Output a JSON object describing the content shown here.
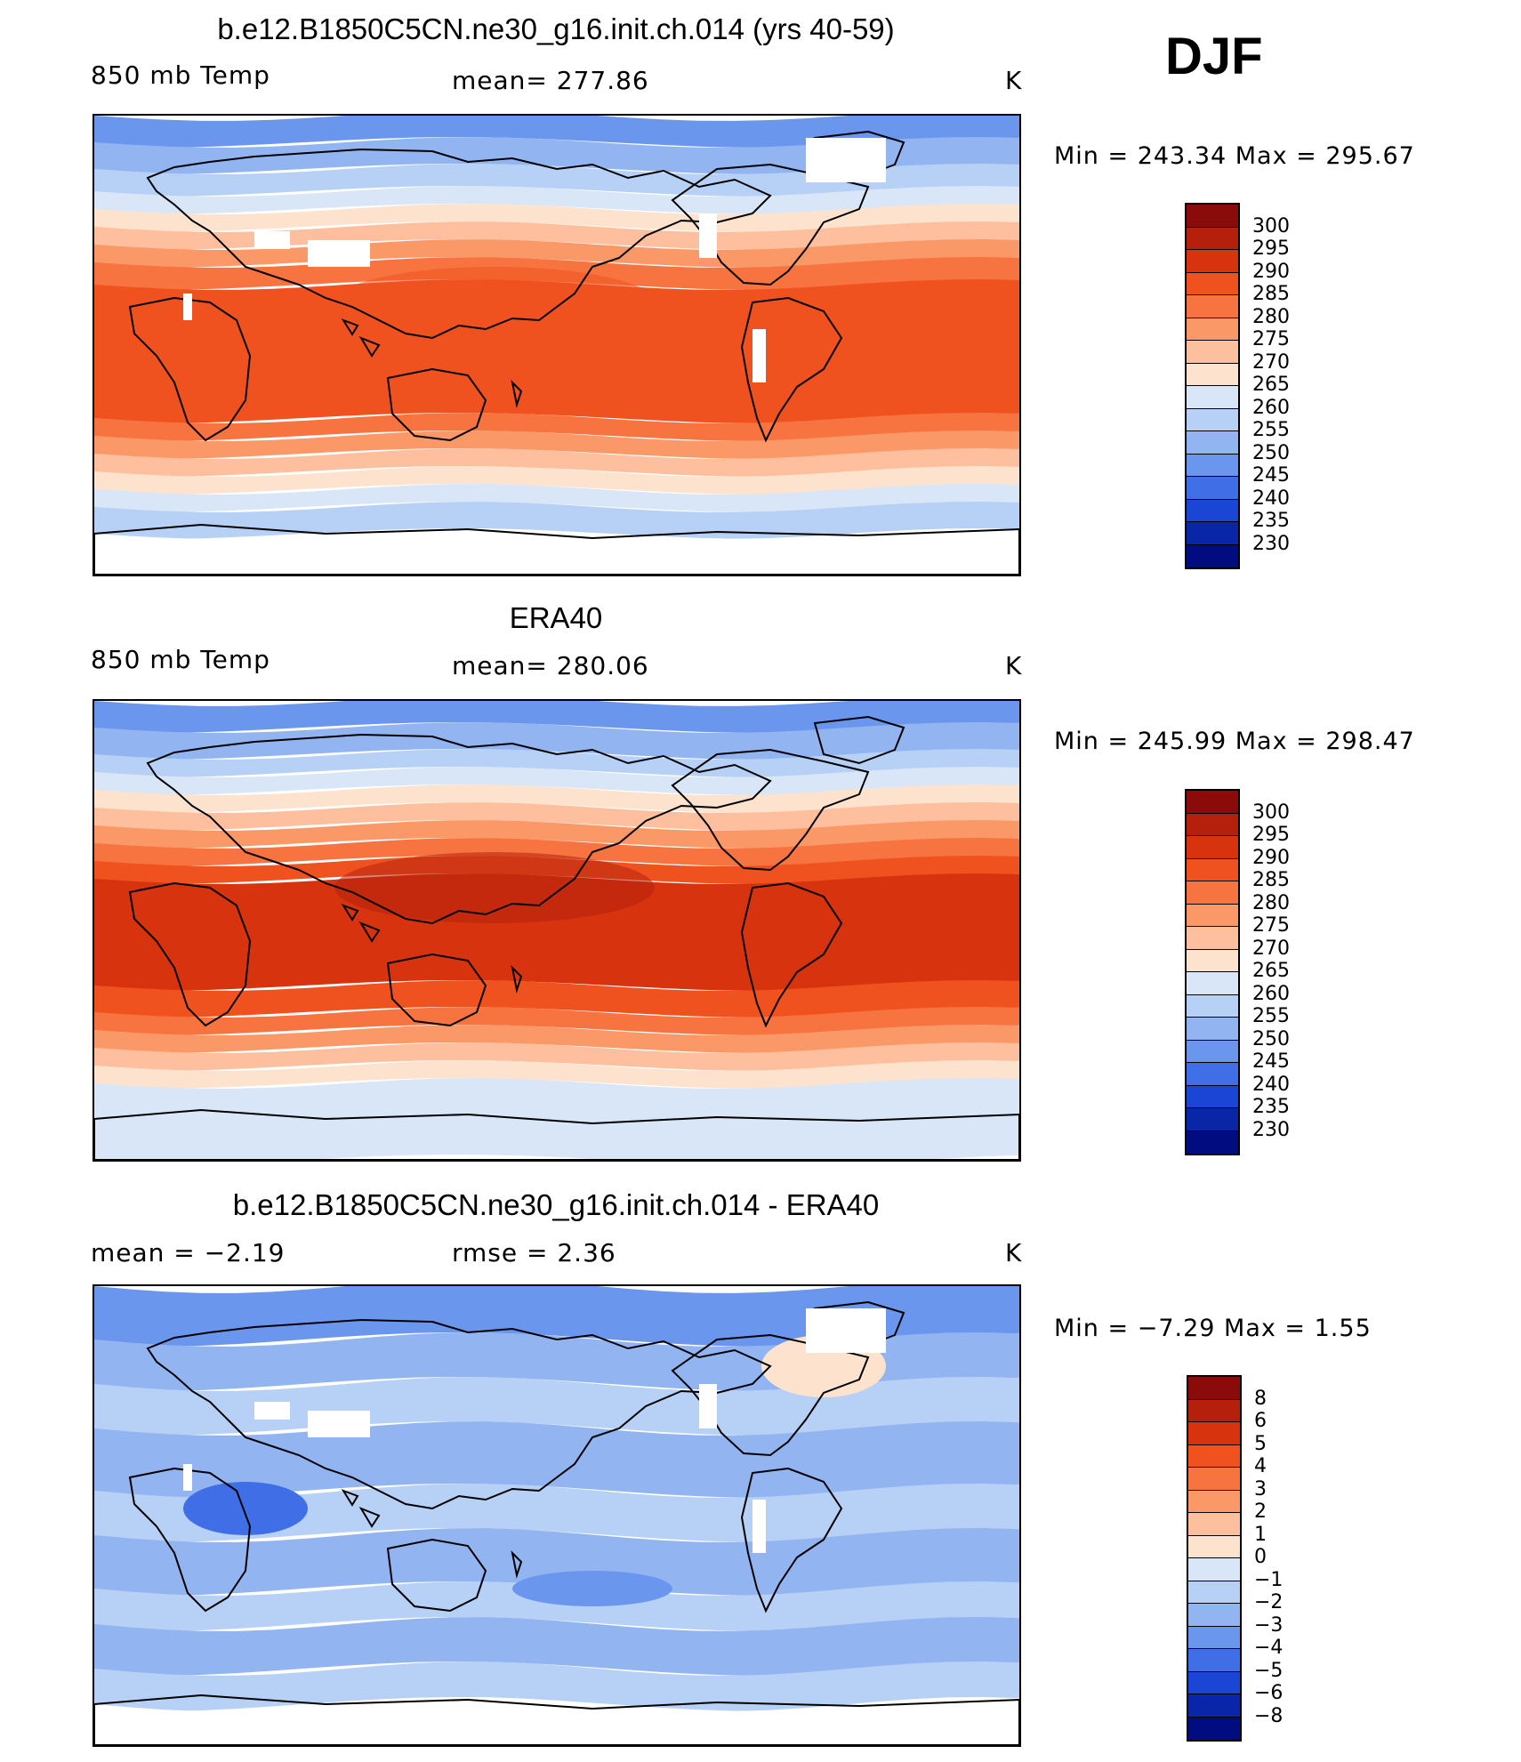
{
  "season": "DJF",
  "panels": [
    {
      "title": "b.e12.B1850C5CN.ne30_g16.init.ch.014 (yrs 40-59)",
      "left_label": "850 mb Temp",
      "center_label": "mean=  277.86",
      "units": "K",
      "stats": "Min  =  243.34  Max  =  295.67",
      "map_description": "Model 850 mb temperature field, DJF",
      "colorbar_ticks": [
        "300",
        "295",
        "290",
        "285",
        "280",
        "275",
        "270",
        "265",
        "260",
        "255",
        "250",
        "245",
        "240",
        "235",
        "230"
      ]
    },
    {
      "title": "ERA40",
      "left_label": "850 mb Temp",
      "center_label": "mean=  280.06",
      "units": "K",
      "stats": "Min  =  245.99  Max  =  298.47",
      "map_description": "ERA40 reanalysis 850 mb temperature field, DJF",
      "colorbar_ticks": [
        "300",
        "295",
        "290",
        "285",
        "280",
        "275",
        "270",
        "265",
        "260",
        "255",
        "250",
        "245",
        "240",
        "235",
        "230"
      ]
    },
    {
      "title": "b.e12.B1850C5CN.ne30_g16.init.ch.014 - ERA40",
      "left_label": "mean =    −2.19",
      "center_label": "rmse =     2.36",
      "units": "K",
      "stats": "Min  =    −7.29  Max  =      1.55",
      "map_description": "Difference field model minus ERA40",
      "colorbar_ticks": [
        "8",
        "6",
        "5",
        "4",
        "3",
        "2",
        "1",
        "0",
        "−1",
        "−2",
        "−3",
        "−4",
        "−5",
        "−6",
        "−8"
      ]
    }
  ],
  "colorbar_colors": [
    "#8b0a0a",
    "#b5200c",
    "#d8330f",
    "#f0521f",
    "#f7733f",
    "#fb9868",
    "#fdbf9d",
    "#fde3cd",
    "#d8e6f7",
    "#b7d0f5",
    "#92b5f2",
    "#6a96ee",
    "#3f6ee6",
    "#1b45d5",
    "#0a26a8",
    "#000c80"
  ],
  "palette": {
    "deepred": "#b5200c",
    "red": "#d8330f",
    "orange": "#f0521f",
    "lorange": "#f7733f",
    "salmon": "#fb9868",
    "peach": "#fdbf9d",
    "cream": "#fde3cd",
    "ice": "#d8e6f7",
    "lblue": "#b7d0f5",
    "blue": "#92b5f2",
    "mblue": "#6a96ee",
    "dblue": "#3f6ee6"
  }
}
